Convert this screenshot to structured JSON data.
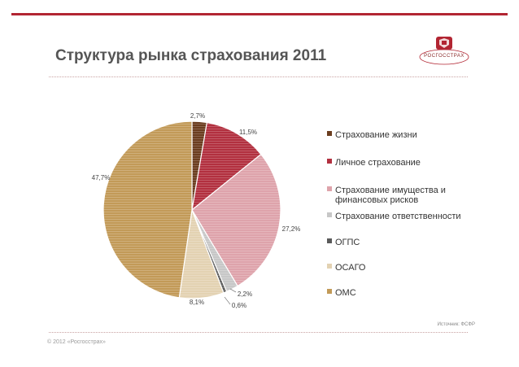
{
  "slide": {
    "title": "Структура рынка страхования 2011",
    "logo_text": "РОСГОССТРАХ",
    "source": "Источник: ФСФР",
    "copyright": "© 2012 «Росгосстрах»",
    "accent_color": "#b22532"
  },
  "chart_data": {
    "type": "pie",
    "start_angle_deg": 0,
    "direction": "clockwise",
    "legend_position": "right",
    "slices": [
      {
        "name": "Страхование жизни",
        "value": 2.7,
        "label": "2,7%",
        "color": "#6b3d1f"
      },
      {
        "name": "Личное страхование",
        "value": 11.5,
        "label": "11,5%",
        "color": "#b2303f"
      },
      {
        "name": "Страхование имущества и финансовых рисков",
        "value": 27.2,
        "label": "27,2%",
        "color": "#dea3ab"
      },
      {
        "name": "Страхование ответственности",
        "value": 2.2,
        "label": "2,2%",
        "color": "#c7c7c7"
      },
      {
        "name": "ОГПС",
        "value": 0.6,
        "label": "0,6%",
        "color": "#5a5a5a"
      },
      {
        "name": "ОСАГО",
        "value": 8.1,
        "label": "8,1%",
        "color": "#e3d2b2"
      },
      {
        "name": "ОМС",
        "value": 47.7,
        "label": "47,7%",
        "color": "#c29a58"
      }
    ],
    "legend_lines": [
      [
        "Страхование жизни"
      ],
      [
        "Личное страхование"
      ],
      [
        "Страхование имущества и",
        "финансовых рисков"
      ],
      [
        "Страхование ответственности"
      ],
      [
        "ОГПС"
      ],
      [
        "ОСАГО"
      ],
      [
        "ОМС"
      ]
    ]
  }
}
